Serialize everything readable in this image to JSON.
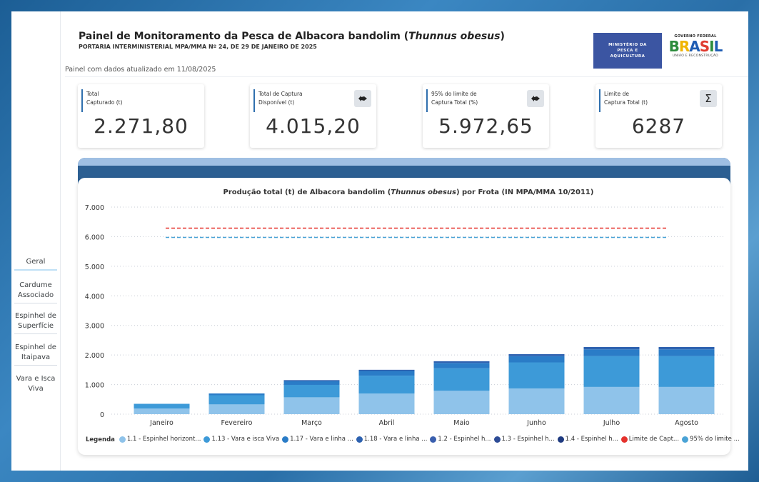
{
  "header": {
    "title_main": "Painel de Monitoramento da Pesca de Albacora bandolim (",
    "title_italic": "Thunnus obesus",
    "title_end": ")",
    "subtitle": "PORTARIA INTERMINISTERIAL MPA/MMA Nº 24, DE 29 DE JANEIRO DE 2025",
    "updated": "Painel com dados atualizado em 11/08/2025",
    "logo_mpa": "MINISTÉRIO DA PESCA E AQUICULTURA",
    "logo_gov_top": "GOVERNO FEDERAL",
    "logo_gov_brand": "BRASIL",
    "logo_gov_bottom": "UNIÃO E RECONSTRUÇÃO"
  },
  "sidebar": {
    "items": [
      {
        "label": "Geral"
      },
      {
        "label": "Cardume Associado"
      },
      {
        "label": "Espinhel de Superfície"
      },
      {
        "label": "Espinhel de Itaipava"
      },
      {
        "label": "Vara e Isca Viva"
      }
    ]
  },
  "cards": [
    {
      "label": "Total\nCapturado (t)",
      "value": "2.271,80",
      "icon": ""
    },
    {
      "label": "Total de  Captura\nDisponível (t)",
      "value": "4.015,20",
      "icon": "fish-icon"
    },
    {
      "label": "95% do limite de\nCaptura Total (%)",
      "value": "5.972,65",
      "icon": "fish-icon"
    },
    {
      "label": "Limite de\nCaptura Total (t)",
      "value": "6287",
      "icon": "sigma-icon"
    }
  ],
  "chart_data": {
    "type": "bar",
    "stacked": true,
    "title_pre": "Produção total (t) de Albacora bandolim (",
    "title_italic": "Thunnus obesus",
    "title_post": ") por Frota (IN MPA/MMA 10/2011)",
    "categories": [
      "Janeiro",
      "Fevereiro",
      "Março",
      "Abril",
      "Maio",
      "Junho",
      "Julho",
      "Agosto"
    ],
    "ylim": [
      0,
      7000
    ],
    "yticks": [
      "0",
      "1.000",
      "2.000",
      "3.000",
      "4.000",
      "5.000",
      "6.000",
      "7.000"
    ],
    "ytick_values": [
      0,
      1000,
      2000,
      3000,
      4000,
      5000,
      6000,
      7000
    ],
    "series": [
      {
        "name": "1.1 - Espinhel horizont...",
        "color": "#8fc3ea",
        "values": [
          190,
          330,
          570,
          700,
          790,
          870,
          920,
          920
        ]
      },
      {
        "name": "1.13 - Vara e isca Viva",
        "color": "#3d9ad8",
        "values": [
          160,
          310,
          420,
          600,
          760,
          880,
          1040,
          1040
        ]
      },
      {
        "name": "1.17 - Vara e linha ...",
        "color": "#2a7cc7",
        "values": [
          0,
          60,
          120,
          160,
          180,
          210,
          230,
          230
        ]
      },
      {
        "name": "1.18 - Vara e linha ...",
        "color": "#2e62b0",
        "values": [
          0,
          0,
          40,
          40,
          60,
          70,
          80,
          80
        ]
      },
      {
        "name": "1.2 - Espinhel h...",
        "color": "#3a5fae",
        "values": [
          0,
          0,
          0,
          0,
          0,
          0,
          0,
          0
        ]
      },
      {
        "name": "1.3 - Espinhel h...",
        "color": "#2d4c96",
        "values": [
          0,
          0,
          0,
          0,
          0,
          0,
          0,
          0
        ]
      },
      {
        "name": "1.4 - Espinhel h...",
        "color": "#1f3b80",
        "values": [
          0,
          0,
          0,
          0,
          0,
          0,
          0,
          0
        ]
      }
    ],
    "lines": [
      {
        "name": "Limite de Capt...",
        "color": "#e5322d",
        "value": 6287
      },
      {
        "name": "95% do limite ...",
        "color": "#4aa3d6",
        "value": 5972.65
      }
    ],
    "legend_title": "Legenda",
    "legend_position": "bottom"
  }
}
